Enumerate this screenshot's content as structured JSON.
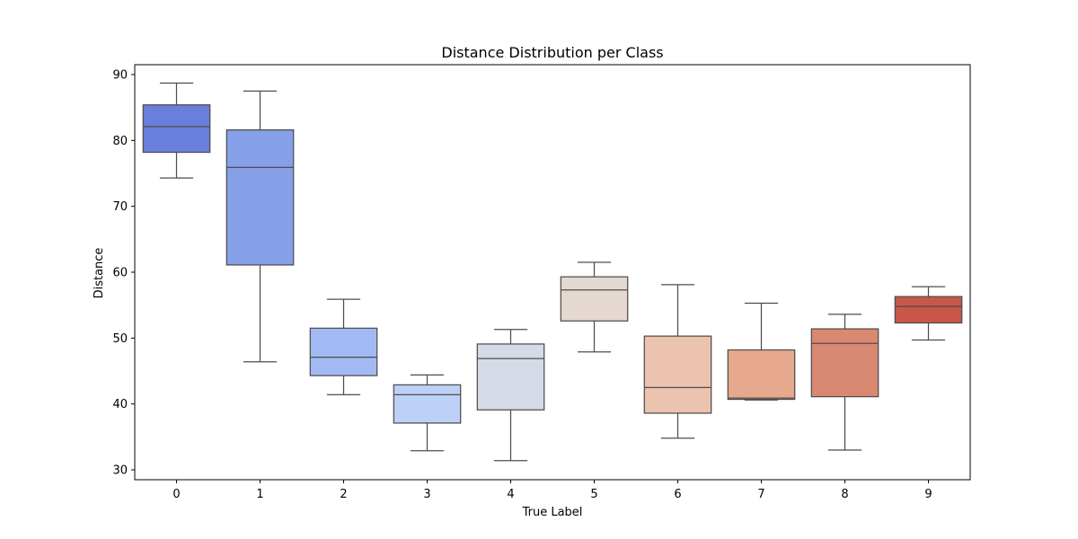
{
  "chart_data": {
    "type": "box",
    "title": "Distance Distribution per Class",
    "xlabel": "True Label",
    "ylabel": "Distance",
    "ylim": [
      28.5,
      91.5
    ],
    "yticks": [
      30,
      40,
      50,
      60,
      70,
      80,
      90
    ],
    "categories": [
      "0",
      "1",
      "2",
      "3",
      "4",
      "5",
      "6",
      "7",
      "8",
      "9"
    ],
    "boxes": [
      {
        "label": "0",
        "whisker_low": 74.3,
        "q1": 78.2,
        "median": 82.1,
        "q3": 85.4,
        "whisker_high": 88.7,
        "color": "#6a7fdb"
      },
      {
        "label": "1",
        "whisker_low": 46.4,
        "q1": 61.1,
        "median": 75.9,
        "q3": 81.6,
        "whisker_high": 87.5,
        "color": "#85a0e8"
      },
      {
        "label": "2",
        "whisker_low": 41.4,
        "q1": 44.3,
        "median": 47.1,
        "q3": 51.5,
        "whisker_high": 55.9,
        "color": "#a1baf4"
      },
      {
        "label": "3",
        "whisker_low": 32.9,
        "q1": 37.1,
        "median": 41.4,
        "q3": 42.9,
        "whisker_high": 44.4,
        "color": "#bdd0f5"
      },
      {
        "label": "4",
        "whisker_low": 31.4,
        "q1": 39.1,
        "median": 46.9,
        "q3": 49.1,
        "whisker_high": 51.3,
        "color": "#d5dbe6"
      },
      {
        "label": "5",
        "whisker_low": 47.9,
        "q1": 52.6,
        "median": 57.3,
        "q3": 59.3,
        "whisker_high": 61.5,
        "color": "#e4d8d0"
      },
      {
        "label": "6",
        "whisker_low": 34.8,
        "q1": 38.6,
        "median": 42.5,
        "q3": 50.3,
        "whisker_high": 58.1,
        "color": "#ecc3ae"
      },
      {
        "label": "7",
        "whisker_low": 40.6,
        "q1": 40.7,
        "median": 40.9,
        "q3": 48.2,
        "whisker_high": 55.3,
        "color": "#e7a98d"
      },
      {
        "label": "8",
        "whisker_low": 33.0,
        "q1": 41.1,
        "median": 49.2,
        "q3": 51.4,
        "whisker_high": 53.6,
        "color": "#d98872"
      },
      {
        "label": "9",
        "whisker_low": 49.7,
        "q1": 52.3,
        "median": 54.8,
        "q3": 56.3,
        "whisker_high": 57.8,
        "color": "#c8574a"
      }
    ],
    "grid": false,
    "legend": "none"
  }
}
